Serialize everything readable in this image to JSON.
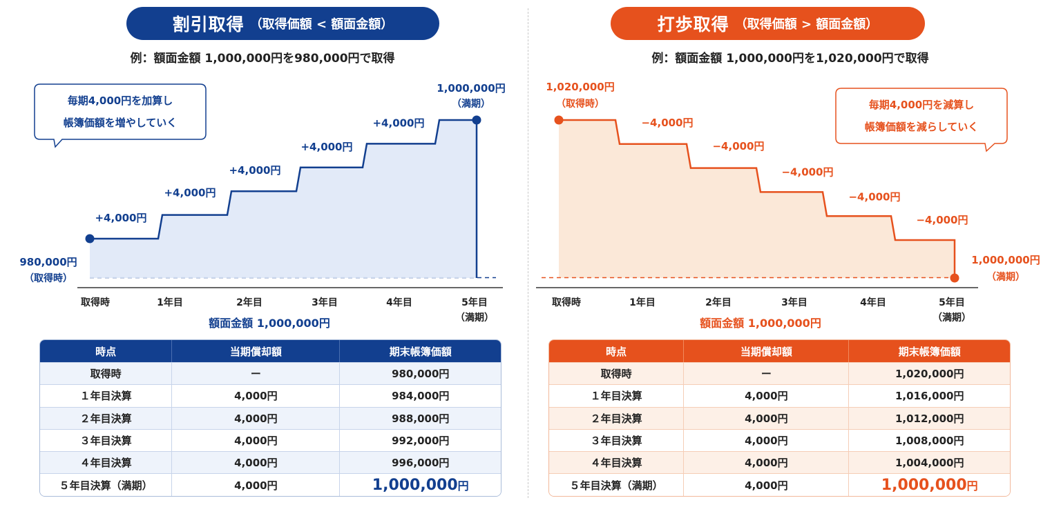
{
  "left": {
    "title": "割引取得",
    "subtitle": "（取得価額 < 額面金額）",
    "example": "例：額面金額 1,000,000円を980,000円で取得",
    "callout": [
      "毎期4,000円を加算し",
      "帳簿価額を増やしていく"
    ],
    "start_label": "980,000円",
    "start_sub": "（取得時）",
    "end_label": "1,000,000円",
    "end_sub": "（満期）",
    "face_label": "額面金額 1,000,000円",
    "table": {
      "headers": [
        "時点",
        "当期償却額",
        "期末帳簿価額"
      ],
      "rows": [
        [
          "取得時",
          "ー",
          "980,000円"
        ],
        [
          "１年目決算",
          "4,000円",
          "984,000円"
        ],
        [
          "２年目決算",
          "4,000円",
          "988,000円"
        ],
        [
          "３年目決算",
          "4,000円",
          "992,000円"
        ],
        [
          "４年目決算",
          "4,000円",
          "996,000円"
        ],
        [
          "５年目決算（満期）",
          "4,000円",
          "1,000,000円"
        ]
      ]
    }
  },
  "right": {
    "title": "打歩取得",
    "subtitle": "（取得価額 > 額面金額）",
    "example": "例：額面金額 1,000,000円を1,020,000円で取得",
    "callout": [
      "毎期4,000円を減算し",
      "帳簿価額を減らしていく"
    ],
    "start_label": "1,020,000円",
    "start_sub": "（取得時）",
    "end_label": "1,000,000円",
    "end_sub": "（満期）",
    "face_label": "額面金額 1,000,000円",
    "table": {
      "headers": [
        "時点",
        "当期償却額",
        "期末帳簿価額"
      ],
      "rows": [
        [
          "取得時",
          "ー",
          "1,020,000円"
        ],
        [
          "１年目決算",
          "4,000円",
          "1,016,000円"
        ],
        [
          "２年目決算",
          "4,000円",
          "1,012,000円"
        ],
        [
          "３年目決算",
          "4,000円",
          "1,008,000円"
        ],
        [
          "４年目決算",
          "4,000円",
          "1,004,000円"
        ],
        [
          "５年目決算（満期）",
          "4,000円",
          "1,000,000円"
        ]
      ]
    }
  },
  "colors": {
    "blue": "#123f8f",
    "orange": "#e6511d"
  },
  "chart_data": [
    {
      "type": "line",
      "x": [
        "取得時",
        "1年目",
        "2年目",
        "3年目",
        "4年目",
        "5年目\n（満期）"
      ],
      "values": [
        980000,
        984000,
        988000,
        992000,
        996000,
        1000000
      ],
      "step_labels": [
        "+4,000円",
        "+4,000円",
        "+4,000円",
        "+4,000円",
        "+4,000円"
      ],
      "reference_line": 1000000,
      "grid": false
    },
    {
      "type": "line",
      "x": [
        "取得時",
        "1年目",
        "2年目",
        "3年目",
        "4年目",
        "5年目\n（満期）"
      ],
      "values": [
        1020000,
        1016000,
        1012000,
        1008000,
        1004000,
        1000000
      ],
      "step_labels": [
        "−4,000円",
        "−4,000円",
        "−4,000円",
        "−4,000円",
        "−4,000円"
      ],
      "reference_line": 1000000,
      "grid": false
    }
  ]
}
